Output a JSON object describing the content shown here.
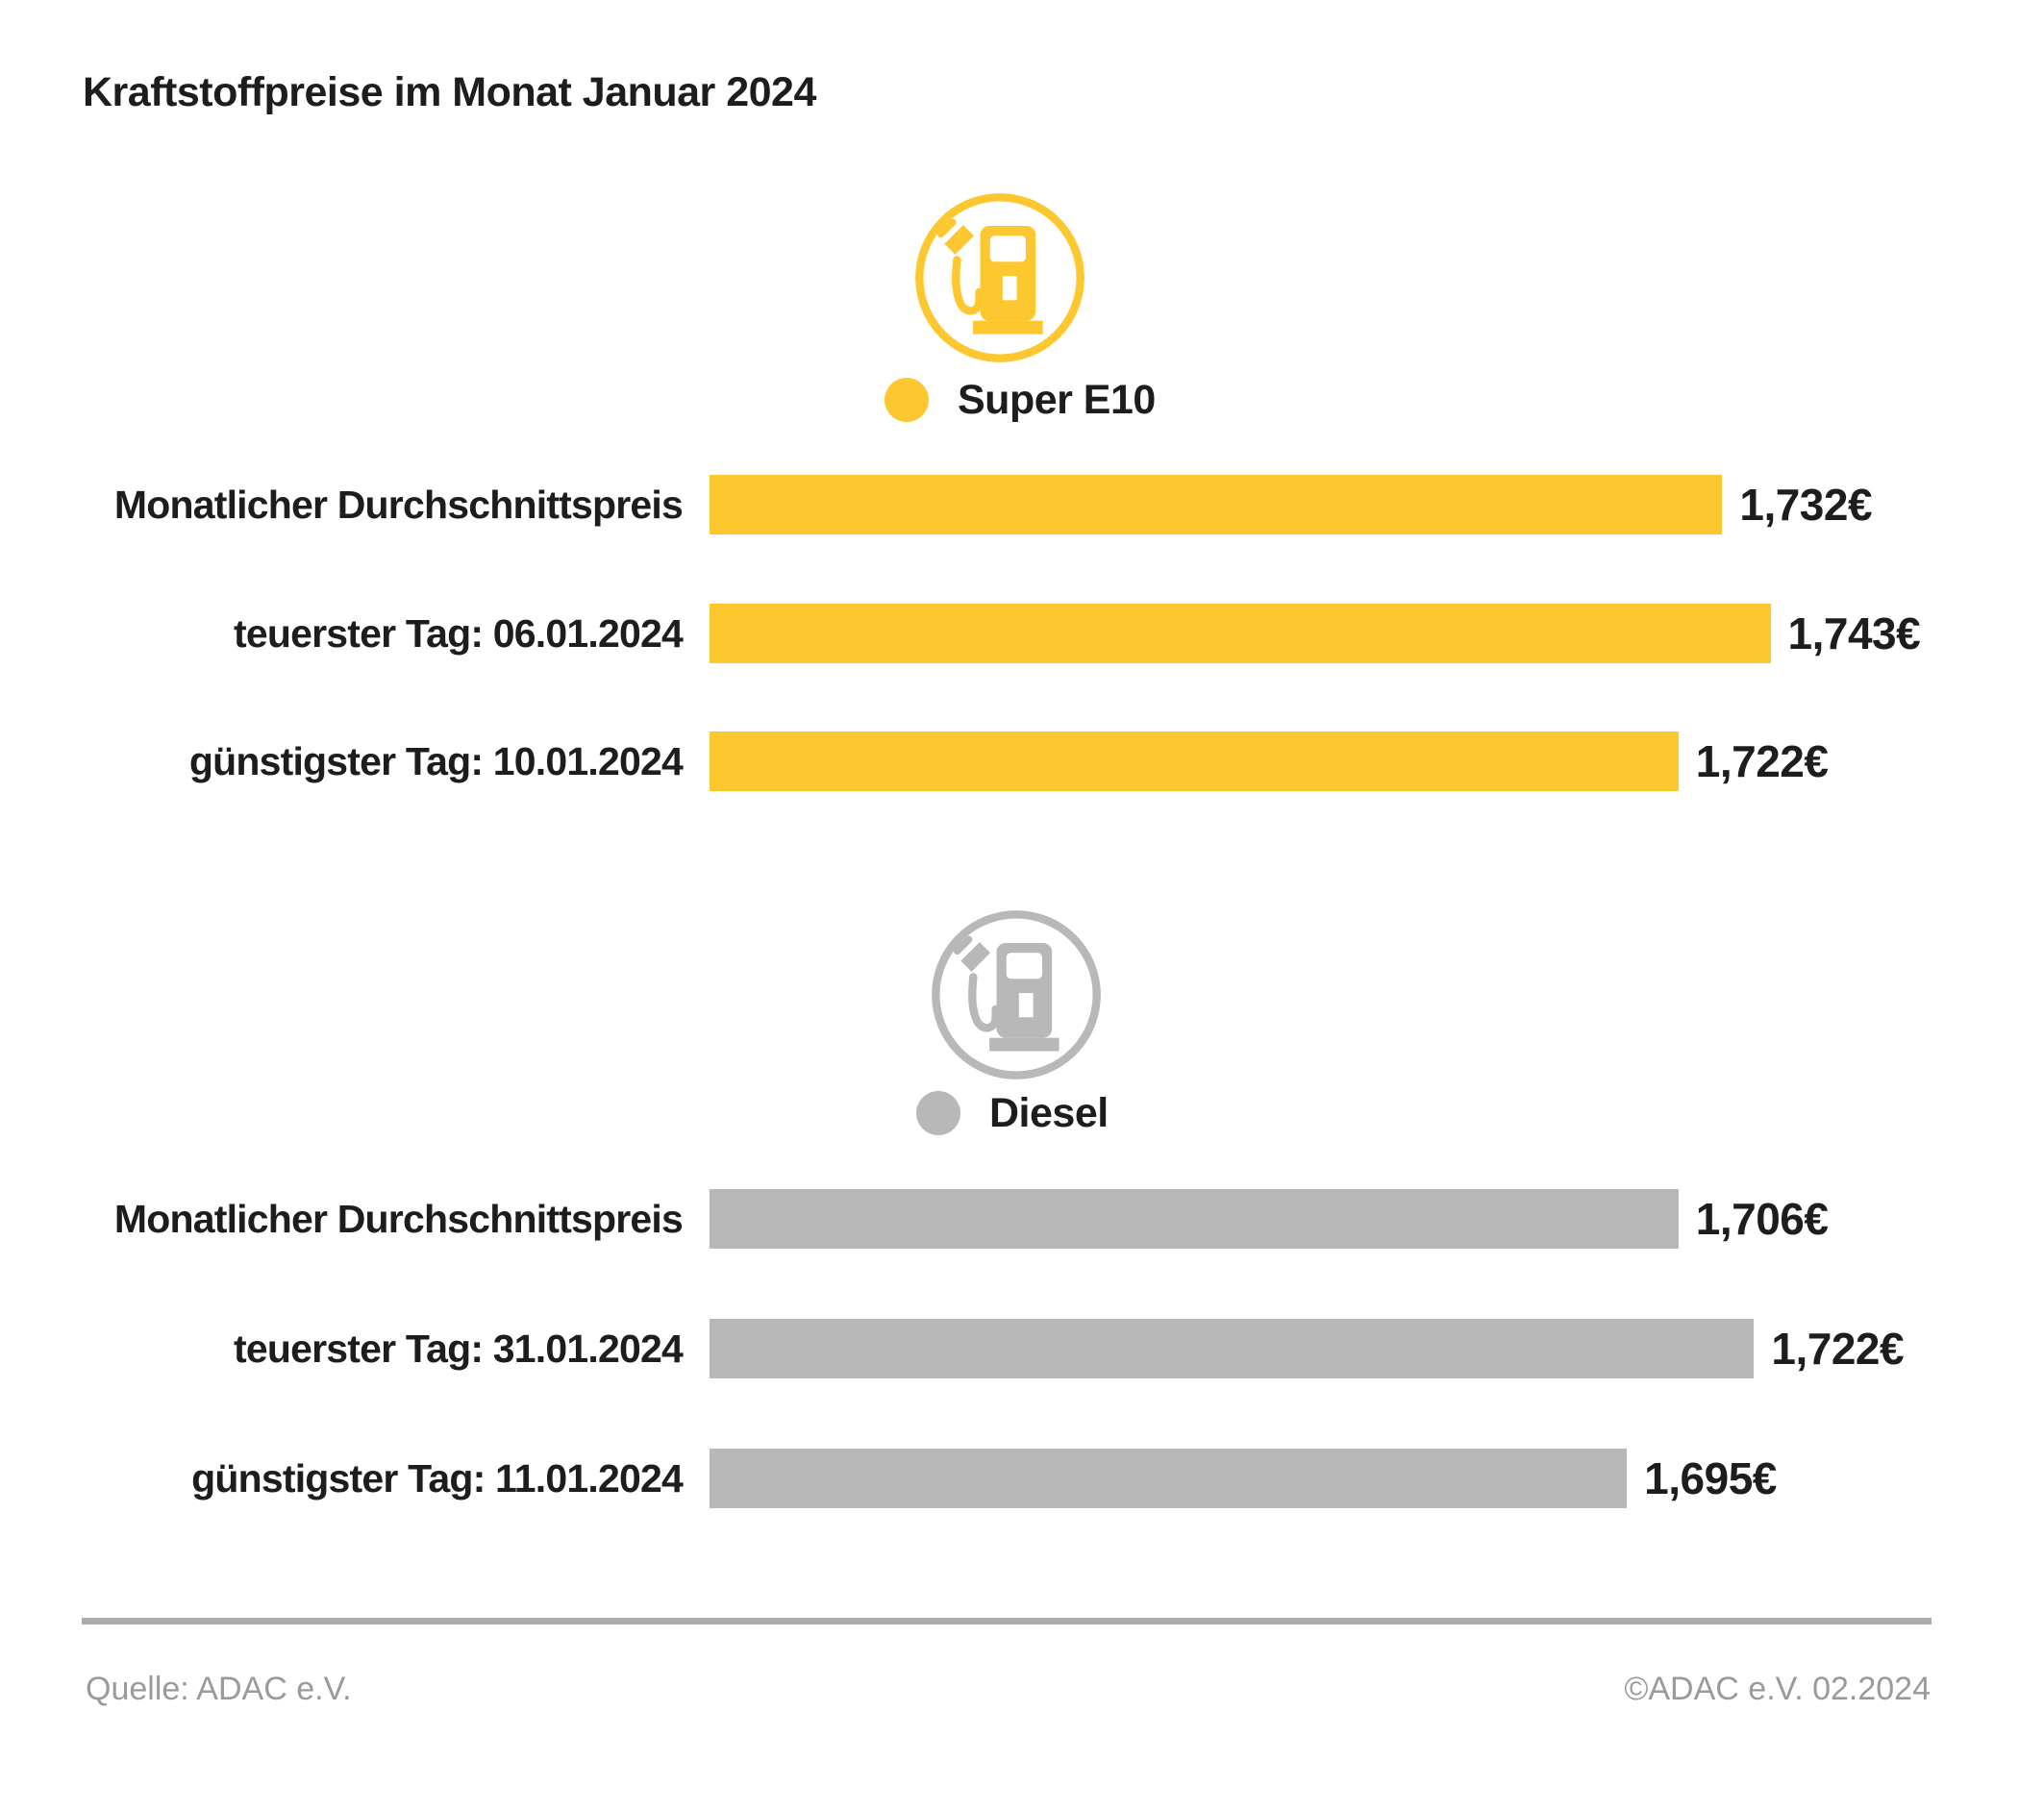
{
  "title": "Kraftstoffpreise im Monat Januar 2024",
  "colors": {
    "super_e10": "#FDC72F",
    "diesel": "#B8B8B8",
    "text": "#1D1D1B",
    "footer_text": "#9A9A9A",
    "divider": "#ABABAB"
  },
  "chart_data": [
    {
      "type": "bar",
      "orientation": "horizontal",
      "group": "Super E10",
      "color": "#FDC72F",
      "legend": {
        "label": "Super E10",
        "icon": "fuel-pump-icon"
      },
      "xlim": [
        1.5,
        1.751
      ],
      "unit": "EUR",
      "rows": [
        {
          "label": "Monatlicher Durchschnittspreis",
          "value": 1.732,
          "value_label": "1,732€"
        },
        {
          "label": "teuerster Tag: 06.01.2024",
          "value": 1.743,
          "value_label": "1,743€"
        },
        {
          "label": "günstigster Tag: 10.01.2024",
          "value": 1.722,
          "value_label": "1,722€"
        }
      ]
    },
    {
      "type": "bar",
      "orientation": "horizontal",
      "group": "Diesel",
      "color": "#B8B8B8",
      "legend": {
        "label": "Diesel",
        "icon": "fuel-pump-icon"
      },
      "xlim": [
        1.5,
        1.733
      ],
      "unit": "EUR",
      "rows": [
        {
          "label": "Monatlicher Durchschnittspreis",
          "value": 1.706,
          "value_label": "1,706€"
        },
        {
          "label": "teuerster Tag: 31.01.2024",
          "value": 1.722,
          "value_label": "1,722€"
        },
        {
          "label": "günstigster Tag: 11.01.2024",
          "value": 1.695,
          "value_label": "1,695€"
        }
      ]
    }
  ],
  "footer": {
    "source": "Quelle: ADAC e.V.",
    "copyright": "©ADAC e.V. 02.2024"
  }
}
